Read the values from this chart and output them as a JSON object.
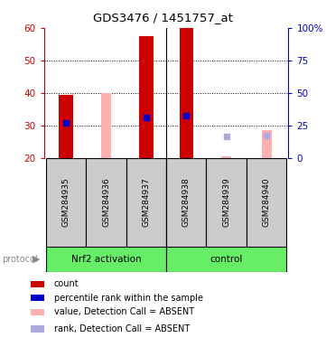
{
  "title": "GDS3476 / 1451757_at",
  "samples": [
    "GSM284935",
    "GSM284936",
    "GSM284937",
    "GSM284938",
    "GSM284939",
    "GSM284940"
  ],
  "ylim_left": [
    20,
    60
  ],
  "ylim_right": [
    0,
    100
  ],
  "yticks_left": [
    20,
    30,
    40,
    50,
    60
  ],
  "yticks_right": [
    0,
    25,
    50,
    75,
    100
  ],
  "yticklabels_right": [
    "0",
    "25",
    "50",
    "75",
    "100%"
  ],
  "bar_bottom": 20,
  "red_bars": {
    "GSM284935": 39.5,
    "GSM284937": 57.5,
    "GSM284938": 60.0
  },
  "pink_bars": {
    "GSM284936": 40.0,
    "GSM284939": 20.5,
    "GSM284940": 28.5
  },
  "blue_squares": {
    "GSM284935": 30.8,
    "GSM284937": 32.5,
    "GSM284938": 33.0
  },
  "light_blue_squares": {
    "GSM284939": 26.5,
    "GSM284940": 27.0
  },
  "red_color": "#cc0000",
  "pink_color": "#ffb0b0",
  "blue_color": "#0000cc",
  "light_blue_color": "#aaaadd",
  "red_bar_width": 0.35,
  "pink_bar_width": 0.25,
  "legend_items": [
    {
      "label": "count",
      "color": "#cc0000"
    },
    {
      "label": "percentile rank within the sample",
      "color": "#0000cc"
    },
    {
      "label": "value, Detection Call = ABSENT",
      "color": "#ffb0b0"
    },
    {
      "label": "rank, Detection Call = ABSENT",
      "color": "#aaaadd"
    }
  ],
  "left_axis_color": "#cc0000",
  "right_axis_color": "#0000cc",
  "group_green": "#66ee66",
  "sample_box_color": "#cccccc",
  "nrf2_samples": 3,
  "control_samples": 3
}
